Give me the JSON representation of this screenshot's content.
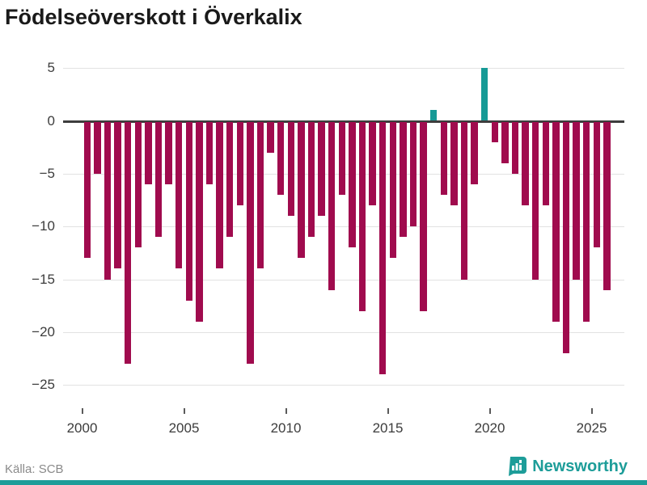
{
  "title": "Födelseöverskott i Överkalix",
  "source": {
    "label": "Källa: SCB"
  },
  "branding": {
    "name": "Newsworthy",
    "accent": "#1d9d99",
    "icon": "newsworthy-bubble-chart-icon"
  },
  "colors": {
    "bar_negative": "#a00b4e",
    "bar_positive": "#169a96",
    "zero_line": "#3d3d3d",
    "gridline": "#e2e2e2",
    "axis_text": "#3c3c3c",
    "title_text": "#1a1a1a",
    "source_text": "#8a8a8a"
  },
  "chart_data": {
    "type": "bar",
    "title": "Födelseöverskott i Överkalix",
    "xlabel": "",
    "ylabel": "",
    "grid": "horizontal",
    "legend": "none",
    "ylim": [
      -25,
      5
    ],
    "yticks": [
      5,
      0,
      -5,
      -10,
      -15,
      -20,
      -25
    ],
    "ytick_labels": [
      "5",
      "0",
      "−5",
      "−10",
      "−15",
      "−20",
      "−25"
    ],
    "xticks": [
      2000,
      2005,
      2010,
      2015,
      2020,
      2025
    ],
    "xtick_labels": [
      "2000",
      "2005",
      "2010",
      "2015",
      "2020",
      "2025"
    ],
    "period": "half-year",
    "categories": [
      "2000 H1",
      "2000 H2",
      "2001 H1",
      "2001 H2",
      "2002 H1",
      "2002 H2",
      "2003 H1",
      "2003 H2",
      "2004 H1",
      "2004 H2",
      "2005 H1",
      "2005 H2",
      "2006 H1",
      "2006 H2",
      "2007 H1",
      "2007 H2",
      "2008 H1",
      "2008 H2",
      "2009 H1",
      "2009 H2",
      "2010 H1",
      "2010 H2",
      "2011 H1",
      "2011 H2",
      "2012 H1",
      "2012 H2",
      "2013 H1",
      "2013 H2",
      "2014 H1",
      "2014 H2",
      "2015 H1",
      "2015 H2",
      "2016 H1",
      "2016 H2",
      "2017 H1",
      "2017 H2",
      "2018 H1",
      "2018 H2",
      "2019 H1",
      "2019 H2",
      "2020 H1",
      "2020 H2",
      "2021 H1",
      "2021 H2",
      "2022 H1",
      "2022 H2",
      "2023 H1",
      "2023 H2",
      "2024 H1",
      "2024 H2",
      "2025 H1",
      "2025 H2"
    ],
    "values": [
      -13,
      -5,
      -15,
      -14,
      -23,
      -12,
      -6,
      -11,
      -6,
      -14,
      -17,
      -19,
      -6,
      -14,
      -11,
      -8,
      -23,
      -14,
      -3,
      -7,
      -9,
      -13,
      -11,
      -9,
      -16,
      -7,
      -12,
      -18,
      -8,
      -24,
      -13,
      -11,
      -10,
      -18,
      1,
      -7,
      -8,
      -15,
      -6,
      5,
      -2,
      -4,
      -5,
      -8,
      -15,
      -8,
      -19,
      -22,
      -15,
      -19,
      -12,
      -16
    ]
  }
}
